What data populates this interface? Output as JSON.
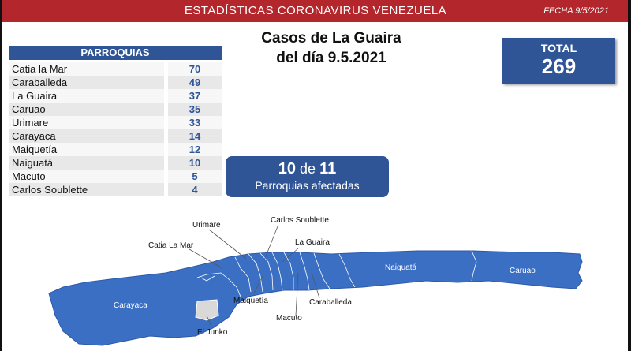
{
  "header": {
    "title": "ESTADÍSTICAS CORONAVIRUS VENEZUELA",
    "date": "FECHA 9/5/2021"
  },
  "main_title": {
    "line1": "Casos de La Guaira",
    "line2": "del día 9.5.2021"
  },
  "total": {
    "label": "TOTAL",
    "value": "269"
  },
  "parroquias": {
    "header": "PARROQUIAS",
    "rows": [
      {
        "name": "Catia la Mar",
        "value": "70"
      },
      {
        "name": "Caraballeda",
        "value": "49"
      },
      {
        "name": "La Guaira",
        "value": "37"
      },
      {
        "name": "Caruao",
        "value": "35"
      },
      {
        "name": "Urimare",
        "value": "33"
      },
      {
        "name": "Carayaca",
        "value": "14"
      },
      {
        "name": "Maiquetía",
        "value": "12"
      },
      {
        "name": "Naiguatá",
        "value": "10"
      },
      {
        "name": "Macuto",
        "value": "5"
      },
      {
        "name": "Carlos Soublette",
        "value": "4"
      }
    ]
  },
  "affected": {
    "count": "10",
    "of": "de",
    "total": "11",
    "label": "Parroquias afectadas"
  },
  "map": {
    "labels": {
      "urimare": "Urimare",
      "carlos_soublette": "Carlos Soublette",
      "catia_la_mar": "Catia La Mar",
      "la_guaira": "La Guaira",
      "naiguata": "Naiguatá",
      "caruao": "Caruao",
      "carayaca": "Carayaca",
      "maiquetia": "Maiquetía",
      "caraballeda": "Caraballeda",
      "macuto": "Macuto",
      "el_junko": "El Junko"
    },
    "colors": {
      "affected": "#3a6fc4",
      "unaffected": "#d9d9d9",
      "border": "#ffffff"
    }
  }
}
